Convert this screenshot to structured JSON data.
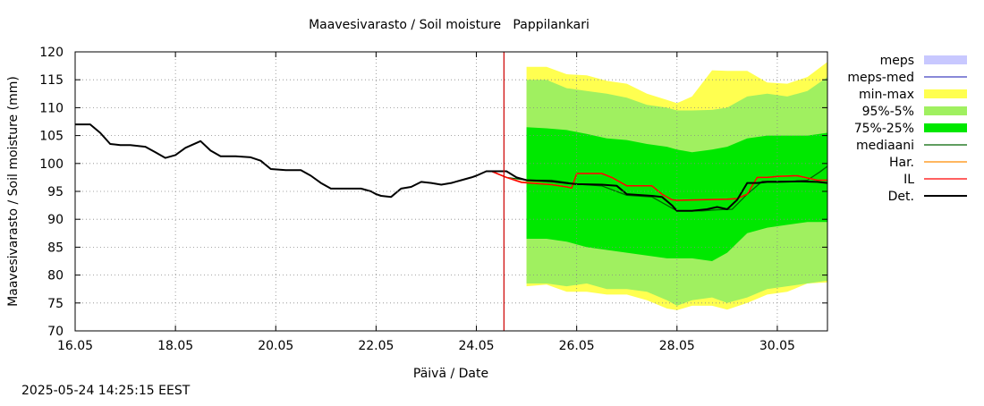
{
  "footer": {
    "timestamp": "2025-05-24 14:25:15 EEST"
  },
  "colors": {
    "meps": "#c8c8ff",
    "meps_med": "#4040c0",
    "minmax": "#ffff50",
    "p95_5": "#a0f060",
    "p75_25": "#00e800",
    "mediaani": "#006400",
    "har": "#ff8c00",
    "il": "#ff0000",
    "det": "#000000",
    "now_line": "#cc0000",
    "grid": "#888888"
  },
  "chart_data": {
    "type": "area",
    "title": "Maavesivarasto / Soil moisture   Pappilankari",
    "xlabel": "Päivä / Date",
    "ylabel": "Maavesivarasto / Soil moisture (mm)",
    "xlim": [
      16.0,
      31.0
    ],
    "ylim": [
      70,
      120
    ],
    "grid": true,
    "legend_position": "right",
    "x_ticks": [
      {
        "x": 16,
        "label": "16.05"
      },
      {
        "x": 18,
        "label": "18.05"
      },
      {
        "x": 20,
        "label": "20.05"
      },
      {
        "x": 22,
        "label": "22.05"
      },
      {
        "x": 24,
        "label": "24.05"
      },
      {
        "x": 26,
        "label": "26.05"
      },
      {
        "x": 28,
        "label": "28.05"
      },
      {
        "x": 30,
        "label": "30.05"
      }
    ],
    "y_ticks": [
      70,
      75,
      80,
      85,
      90,
      95,
      100,
      105,
      110,
      115,
      120
    ],
    "now_x": 24.55,
    "legend": [
      {
        "key": "meps",
        "label": "meps",
        "style": "box"
      },
      {
        "key": "meps_med",
        "label": "meps-med",
        "style": "line"
      },
      {
        "key": "minmax",
        "label": "min-max",
        "style": "box"
      },
      {
        "key": "p95_5",
        "label": "95%-5%",
        "style": "box"
      },
      {
        "key": "p75_25",
        "label": "75%-25%",
        "style": "box"
      },
      {
        "key": "mediaani",
        "label": "mediaani",
        "style": "line"
      },
      {
        "key": "har",
        "label": "Har.",
        "style": "line"
      },
      {
        "key": "il",
        "label": "IL",
        "style": "line"
      },
      {
        "key": "det",
        "label": "Det.",
        "style": "thickline"
      }
    ],
    "bands": {
      "minmax": {
        "x": [
          25.0,
          25.4,
          25.8,
          26.2,
          26.6,
          27.0,
          27.4,
          27.8,
          28.0,
          28.3,
          28.7,
          29.0,
          29.4,
          29.8,
          30.2,
          30.6,
          31.0
        ],
        "upper": [
          117.3,
          117.3,
          116.0,
          115.8,
          114.8,
          114.3,
          112.5,
          111.4,
          110.8,
          112.0,
          116.7,
          116.6,
          116.6,
          114.5,
          114.3,
          115.5,
          118.2
        ],
        "lower": [
          78.0,
          78.3,
          77.0,
          77.0,
          76.5,
          76.5,
          75.5,
          74.0,
          73.7,
          74.5,
          74.5,
          73.8,
          75.0,
          76.5,
          77.0,
          78.5,
          78.7
        ]
      },
      "p95_5": {
        "x": [
          25.0,
          25.4,
          25.8,
          26.2,
          26.6,
          27.0,
          27.4,
          27.8,
          28.0,
          28.3,
          28.7,
          29.0,
          29.4,
          29.8,
          30.2,
          30.6,
          31.0
        ],
        "upper": [
          115.0,
          115.0,
          113.5,
          113.0,
          112.5,
          111.8,
          110.5,
          110.0,
          109.5,
          109.5,
          109.6,
          110.0,
          112.0,
          112.5,
          112.0,
          113.0,
          115.5
        ],
        "lower": [
          78.5,
          78.5,
          78.0,
          78.5,
          77.5,
          77.5,
          77.0,
          75.5,
          74.5,
          75.5,
          76.0,
          75.0,
          76.0,
          77.5,
          78.0,
          78.5,
          79.0
        ]
      },
      "p75_25": {
        "x": [
          25.0,
          25.4,
          25.8,
          26.2,
          26.6,
          27.0,
          27.4,
          27.8,
          28.0,
          28.3,
          28.7,
          29.0,
          29.4,
          29.8,
          30.2,
          30.6,
          31.0
        ],
        "upper": [
          106.5,
          106.3,
          106.0,
          105.3,
          104.5,
          104.2,
          103.5,
          103.0,
          102.5,
          102.0,
          102.5,
          103.0,
          104.5,
          105.0,
          105.0,
          105.0,
          105.5
        ],
        "lower": [
          86.5,
          86.5,
          86.0,
          85.0,
          84.5,
          84.0,
          83.5,
          83.0,
          83.0,
          83.0,
          82.5,
          84.0,
          87.5,
          88.5,
          89.0,
          89.5,
          89.5
        ]
      }
    },
    "series": [
      {
        "key": "mediaani",
        "x": [
          24.3,
          24.6,
          25.0,
          25.5,
          26.0,
          26.5,
          27.0,
          27.5,
          28.0,
          28.5,
          28.8,
          29.1,
          29.4,
          29.7,
          30.0,
          30.3,
          30.6,
          30.85,
          31.0
        ],
        "y": [
          98.6,
          97.5,
          97.0,
          97.0,
          96.3,
          96.0,
          94.3,
          94.0,
          91.5,
          91.5,
          91.7,
          91.8,
          94.5,
          96.8,
          96.8,
          96.8,
          97.0,
          98.5,
          99.5
        ]
      },
      {
        "key": "har",
        "x": [
          24.3,
          24.6,
          24.9,
          25.2,
          25.5,
          25.8,
          25.9,
          26.0,
          26.5,
          26.7,
          27.0,
          27.5,
          27.7,
          27.9,
          28.0,
          28.5,
          29.0,
          29.2,
          29.4,
          29.6,
          29.8,
          30.0,
          30.4,
          30.8,
          31.0
        ],
        "y": [
          98.6,
          97.5,
          96.7,
          96.5,
          96.2,
          95.8,
          95.6,
          98.2,
          98.2,
          97.5,
          96.0,
          96.0,
          94.5,
          93.5,
          93.4,
          93.5,
          93.6,
          93.7,
          94.5,
          97.5,
          97.5,
          97.7,
          97.8,
          97.0,
          97.0
        ]
      },
      {
        "key": "il",
        "x": [
          24.3,
          24.6,
          24.9,
          25.2,
          25.5,
          25.8,
          25.9,
          26.0,
          26.5,
          26.7,
          27.0,
          27.5,
          27.7,
          27.9,
          28.0,
          28.5,
          29.0,
          29.2,
          29.4,
          29.6,
          29.8,
          30.0,
          30.4,
          30.8,
          31.0
        ],
        "y": [
          98.6,
          97.5,
          96.6,
          96.4,
          96.2,
          95.8,
          95.6,
          98.2,
          98.2,
          97.5,
          96.0,
          96.0,
          94.5,
          93.5,
          93.4,
          93.5,
          93.6,
          93.7,
          94.5,
          97.5,
          97.5,
          97.7,
          97.8,
          97.0,
          97.0
        ]
      },
      {
        "key": "det",
        "x": [
          16.0,
          16.3,
          16.5,
          16.7,
          16.9,
          17.1,
          17.4,
          17.6,
          17.8,
          18.0,
          18.2,
          18.5,
          18.7,
          18.9,
          19.2,
          19.5,
          19.7,
          19.9,
          20.2,
          20.5,
          20.7,
          20.9,
          21.1,
          21.4,
          21.7,
          21.9,
          22.0,
          22.1,
          22.3,
          22.5,
          22.7,
          22.9,
          23.1,
          23.3,
          23.5,
          23.7,
          23.9,
          24.0,
          24.2,
          24.4,
          24.6,
          24.8,
          25.0,
          25.5,
          26.0,
          26.5,
          26.8,
          27.0,
          27.5,
          27.7,
          27.9,
          28.0,
          28.3,
          28.6,
          28.8,
          29.0,
          29.2,
          29.4,
          29.6,
          29.8,
          30.0,
          30.4,
          30.8,
          31.0
        ],
        "y": [
          107.0,
          107.0,
          105.5,
          103.5,
          103.3,
          103.3,
          103.0,
          102.0,
          101.0,
          101.5,
          102.8,
          104.0,
          102.3,
          101.3,
          101.3,
          101.1,
          100.5,
          99.0,
          98.8,
          98.8,
          97.8,
          96.5,
          95.5,
          95.5,
          95.5,
          95.0,
          94.5,
          94.2,
          94.0,
          95.5,
          95.8,
          96.7,
          96.5,
          96.2,
          96.5,
          97.0,
          97.5,
          97.8,
          98.6,
          98.6,
          98.6,
          97.5,
          97.0,
          96.8,
          96.3,
          96.2,
          96.0,
          94.5,
          94.2,
          94.0,
          92.5,
          91.5,
          91.5,
          91.8,
          92.2,
          91.8,
          93.5,
          96.5,
          96.5,
          96.7,
          96.7,
          96.8,
          96.7,
          96.5
        ]
      }
    ]
  }
}
